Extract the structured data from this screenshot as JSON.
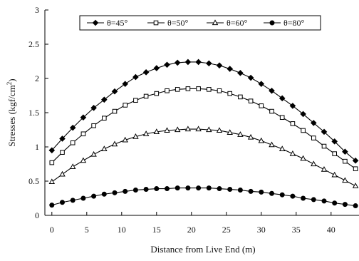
{
  "chart_data": {
    "type": "line",
    "title": "",
    "xlabel": "Distance from Live End (m)",
    "ylabel_main": "Stresses (kgf/cm",
    "ylabel_sup": "2",
    "ylabel_close": ")",
    "xlim": [
      -1,
      44
    ],
    "ylim": [
      0,
      3
    ],
    "xticks": [
      0,
      5,
      10,
      15,
      20,
      25,
      30,
      35,
      40
    ],
    "yticks": [
      0,
      0.5,
      1,
      1.5,
      2,
      2.5,
      3
    ],
    "ytick_labels": [
      "0",
      "0.5",
      "1",
      "1.5",
      "2",
      "2.5",
      "3"
    ],
    "grid": false,
    "legend_position": "top",
    "x": [
      0,
      1.5,
      3,
      4.5,
      6,
      7.5,
      9,
      10.5,
      12,
      13.5,
      15,
      16.5,
      18,
      19.5,
      21,
      22.5,
      24,
      25.5,
      27,
      28.5,
      30,
      31.5,
      33,
      34.5,
      36,
      37.5,
      39,
      40.5,
      42,
      43.5
    ],
    "series": [
      {
        "name": "θ=45°",
        "marker": "diamond-filled",
        "values": [
          0.95,
          1.12,
          1.28,
          1.43,
          1.57,
          1.69,
          1.81,
          1.92,
          2.02,
          2.09,
          2.15,
          2.2,
          2.23,
          2.24,
          2.24,
          2.22,
          2.19,
          2.14,
          2.08,
          2.01,
          1.92,
          1.82,
          1.71,
          1.6,
          1.48,
          1.35,
          1.22,
          1.08,
          0.93,
          0.8
        ]
      },
      {
        "name": "θ=50°",
        "marker": "square-open",
        "values": [
          0.77,
          0.92,
          1.06,
          1.19,
          1.31,
          1.42,
          1.52,
          1.61,
          1.68,
          1.74,
          1.78,
          1.82,
          1.84,
          1.85,
          1.85,
          1.84,
          1.82,
          1.78,
          1.73,
          1.67,
          1.6,
          1.52,
          1.43,
          1.34,
          1.24,
          1.13,
          1.01,
          0.9,
          0.79,
          0.68
        ]
      },
      {
        "name": "θ=60°",
        "marker": "triangle-open",
        "values": [
          0.49,
          0.6,
          0.71,
          0.8,
          0.89,
          0.97,
          1.04,
          1.1,
          1.15,
          1.19,
          1.22,
          1.24,
          1.25,
          1.26,
          1.26,
          1.25,
          1.24,
          1.21,
          1.18,
          1.14,
          1.09,
          1.03,
          0.97,
          0.9,
          0.83,
          0.75,
          0.67,
          0.59,
          0.51,
          0.43
        ]
      },
      {
        "name": "θ=80°",
        "marker": "circle-filled",
        "values": [
          0.15,
          0.19,
          0.22,
          0.25,
          0.28,
          0.31,
          0.33,
          0.35,
          0.37,
          0.38,
          0.39,
          0.39,
          0.4,
          0.4,
          0.4,
          0.4,
          0.39,
          0.38,
          0.37,
          0.35,
          0.34,
          0.32,
          0.3,
          0.28,
          0.25,
          0.23,
          0.21,
          0.18,
          0.16,
          0.14
        ]
      }
    ]
  },
  "colors": {
    "line": "#000000",
    "open_marker_fill": "#ffffff"
  }
}
